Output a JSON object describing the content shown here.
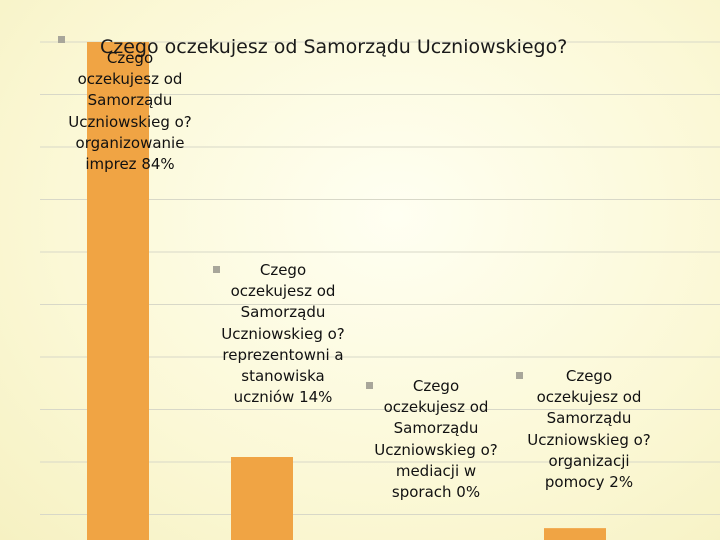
{
  "chart_data": {
    "type": "bar",
    "title": "Czego oczekujesz od Samorządu Uczniowskiego?",
    "categories": [
      "organizowanie imprez",
      "reprezentowni a stanowiska uczniów",
      "mediacji w sporach",
      "organizacji pomocy"
    ],
    "values": [
      84,
      14,
      0,
      2
    ],
    "unit": "%",
    "data_labels": [
      "Czego oczekujesz od Samorządu Uczniowskieg o? organizowanie imprez 84%",
      "Czego oczekujesz od Samorządu Uczniowskieg o? reprezentowni a stanowiska uczniów 14%",
      "Czego oczekujesz od Samorządu Uczniowskieg o? mediacji w sporach 0%",
      "Czego oczekujesz od Samorządu Uczniowskieg o? organizacji pomocy 2%"
    ],
    "ylim": [
      0,
      100
    ],
    "grid": true,
    "colors": {
      "bar": "#f0a444",
      "grid": "#d8d8c8",
      "bullet": "#a8a69a"
    }
  }
}
